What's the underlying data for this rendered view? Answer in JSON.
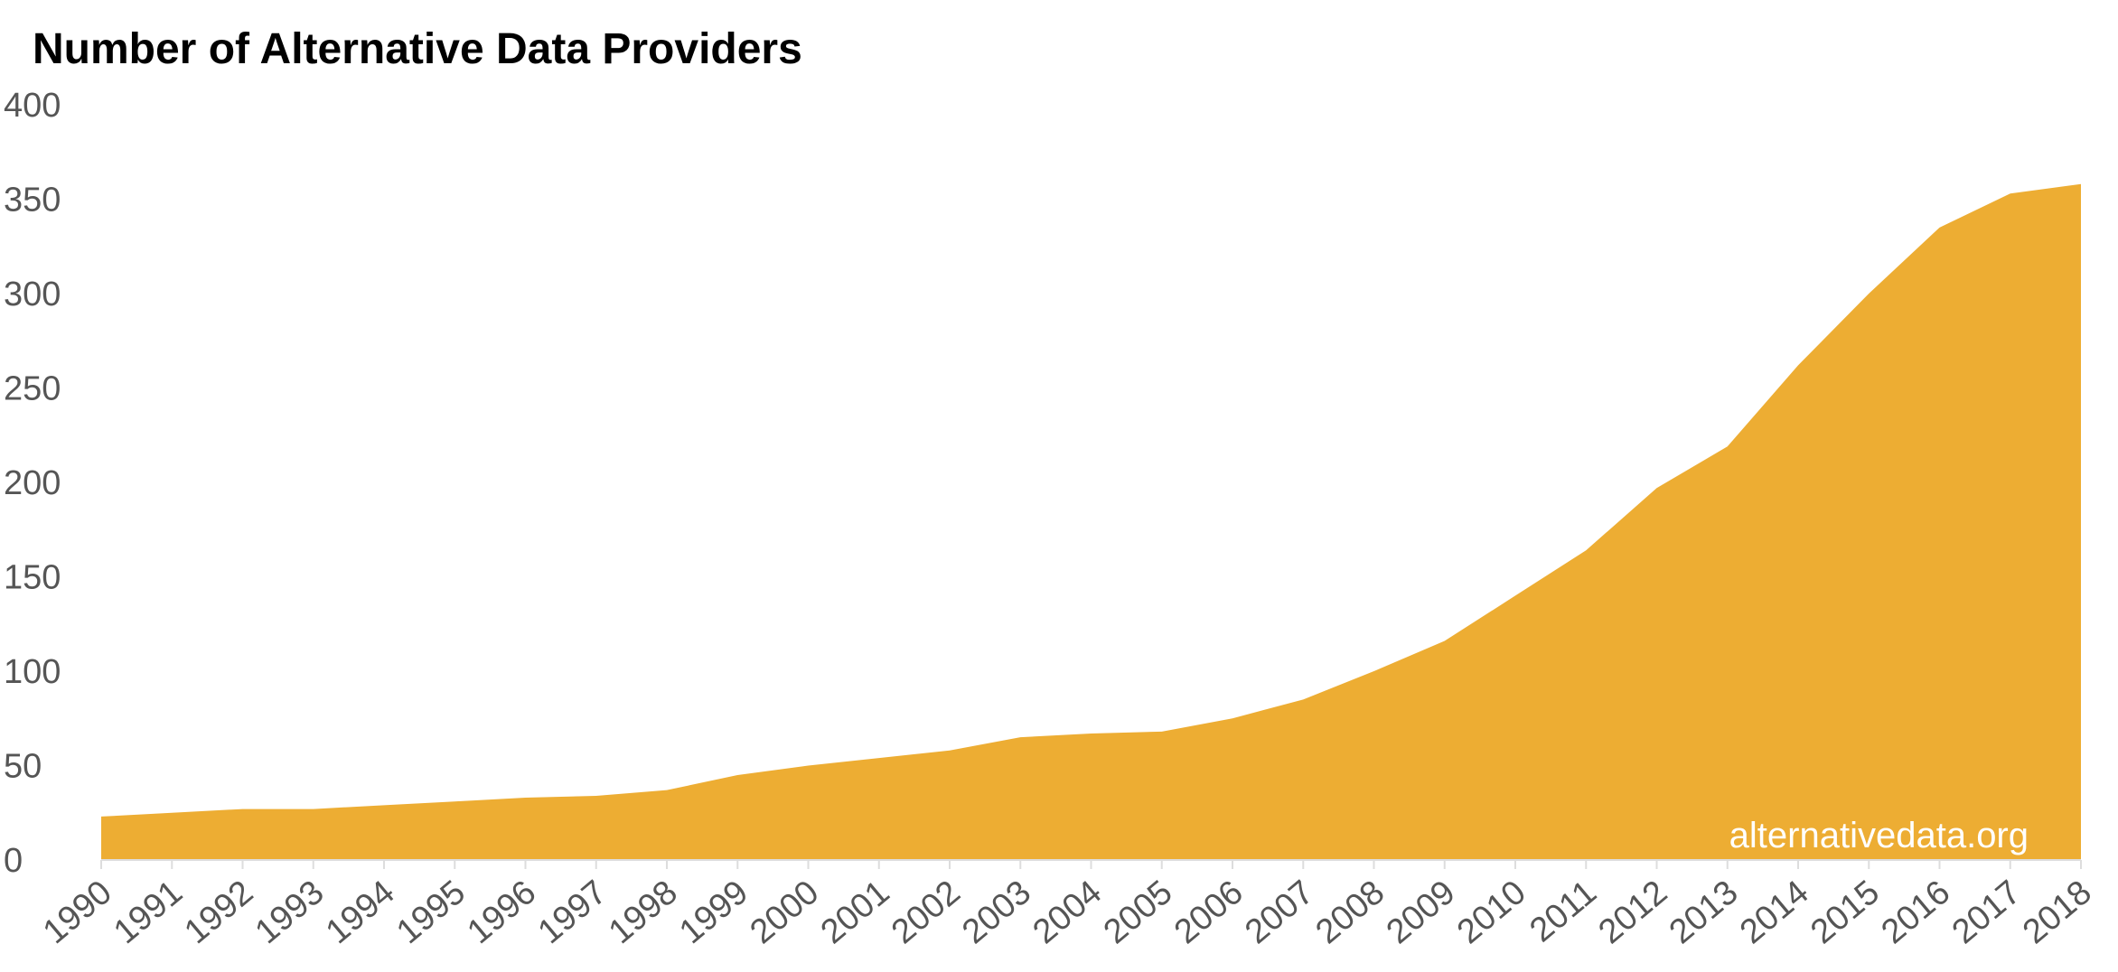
{
  "chart_data": {
    "type": "area",
    "title": "Number of Alternative Data Providers",
    "xlabel": "",
    "ylabel": "",
    "x": [
      "1990",
      "1991",
      "1992",
      "1993",
      "1994",
      "1995",
      "1996",
      "1997",
      "1998",
      "1999",
      "2000",
      "2001",
      "2002",
      "2003",
      "2004",
      "2005",
      "2006",
      "2007",
      "2008",
      "2009",
      "2010",
      "2011",
      "2012",
      "2013",
      "2014",
      "2015",
      "2016",
      "2017",
      "2018"
    ],
    "series": [
      {
        "values": [
          23,
          25,
          27,
          27,
          29,
          31,
          33,
          34,
          37,
          45,
          50,
          54,
          58,
          65,
          67,
          68,
          75,
          85,
          100,
          116,
          140,
          164,
          197,
          219,
          262,
          300,
          335,
          353,
          358
        ],
        "color": "#EDAD33"
      }
    ],
    "yticks": [
      "0",
      "50",
      "100",
      "150",
      "200",
      "250",
      "300",
      "350",
      "400"
    ],
    "ylim": [
      0,
      400
    ],
    "grid": false,
    "legend": "none",
    "watermark": "alternativedata.org",
    "axis_color": "#dddddd",
    "text_color": "#555555"
  }
}
